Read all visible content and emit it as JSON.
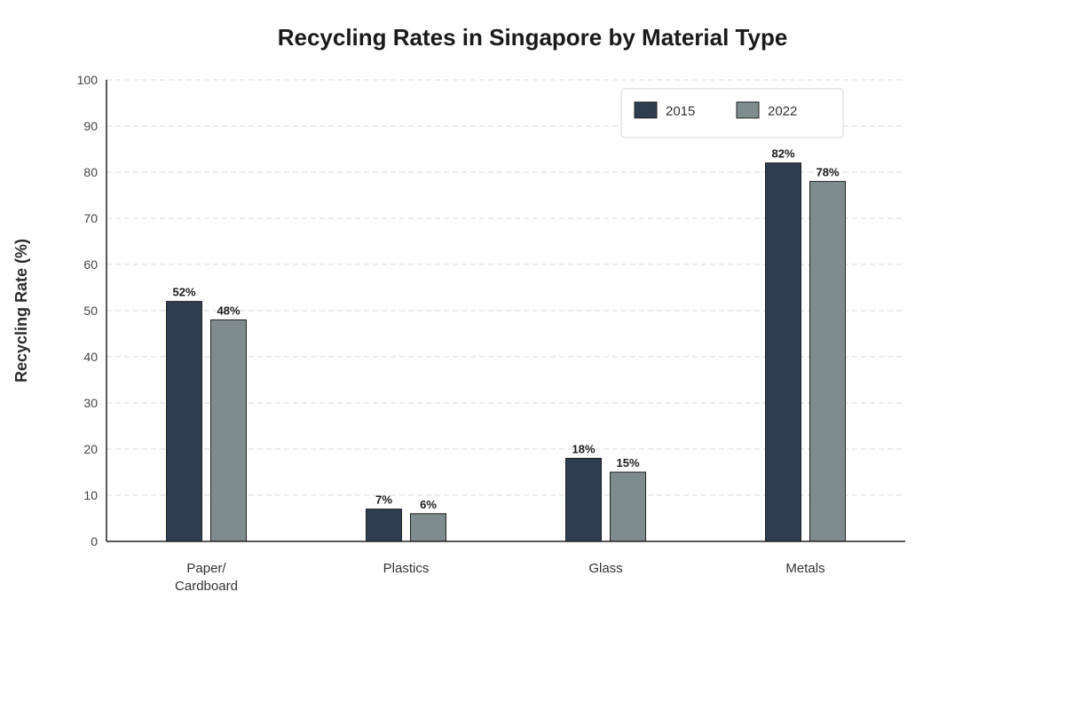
{
  "chart_data": {
    "type": "bar",
    "title": "Recycling Rates in Singapore by Material Type",
    "xlabel": "",
    "ylabel": "Recycling Rate (%)",
    "ylim": [
      0,
      100
    ],
    "yticks": [
      0,
      10,
      20,
      30,
      40,
      50,
      60,
      70,
      80,
      90,
      100
    ],
    "grid": true,
    "legend_position": "top-right",
    "categories": [
      [
        "Paper/",
        "Cardboard"
      ],
      [
        "Plastics"
      ],
      [
        "Glass"
      ],
      [
        "Metals"
      ]
    ],
    "series": [
      {
        "name": "2015",
        "color": "#2e3d4f",
        "values": [
          52,
          7,
          18,
          82
        ],
        "labels": [
          "52%",
          "7%",
          "18%",
          "82%"
        ]
      },
      {
        "name": "2022",
        "color": "#7f8c8d",
        "values": [
          48,
          6,
          15,
          78
        ],
        "labels": [
          "48%",
          "6%",
          "15%",
          "78%"
        ]
      }
    ]
  }
}
